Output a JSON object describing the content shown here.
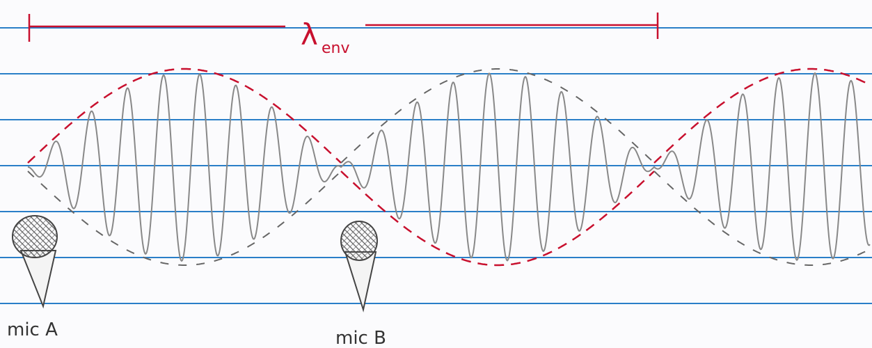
{
  "scale": {
    "symbol": "λ",
    "subscript": "env"
  },
  "mics": [
    {
      "label": "mic A"
    },
    {
      "label": "mic B"
    }
  ]
}
